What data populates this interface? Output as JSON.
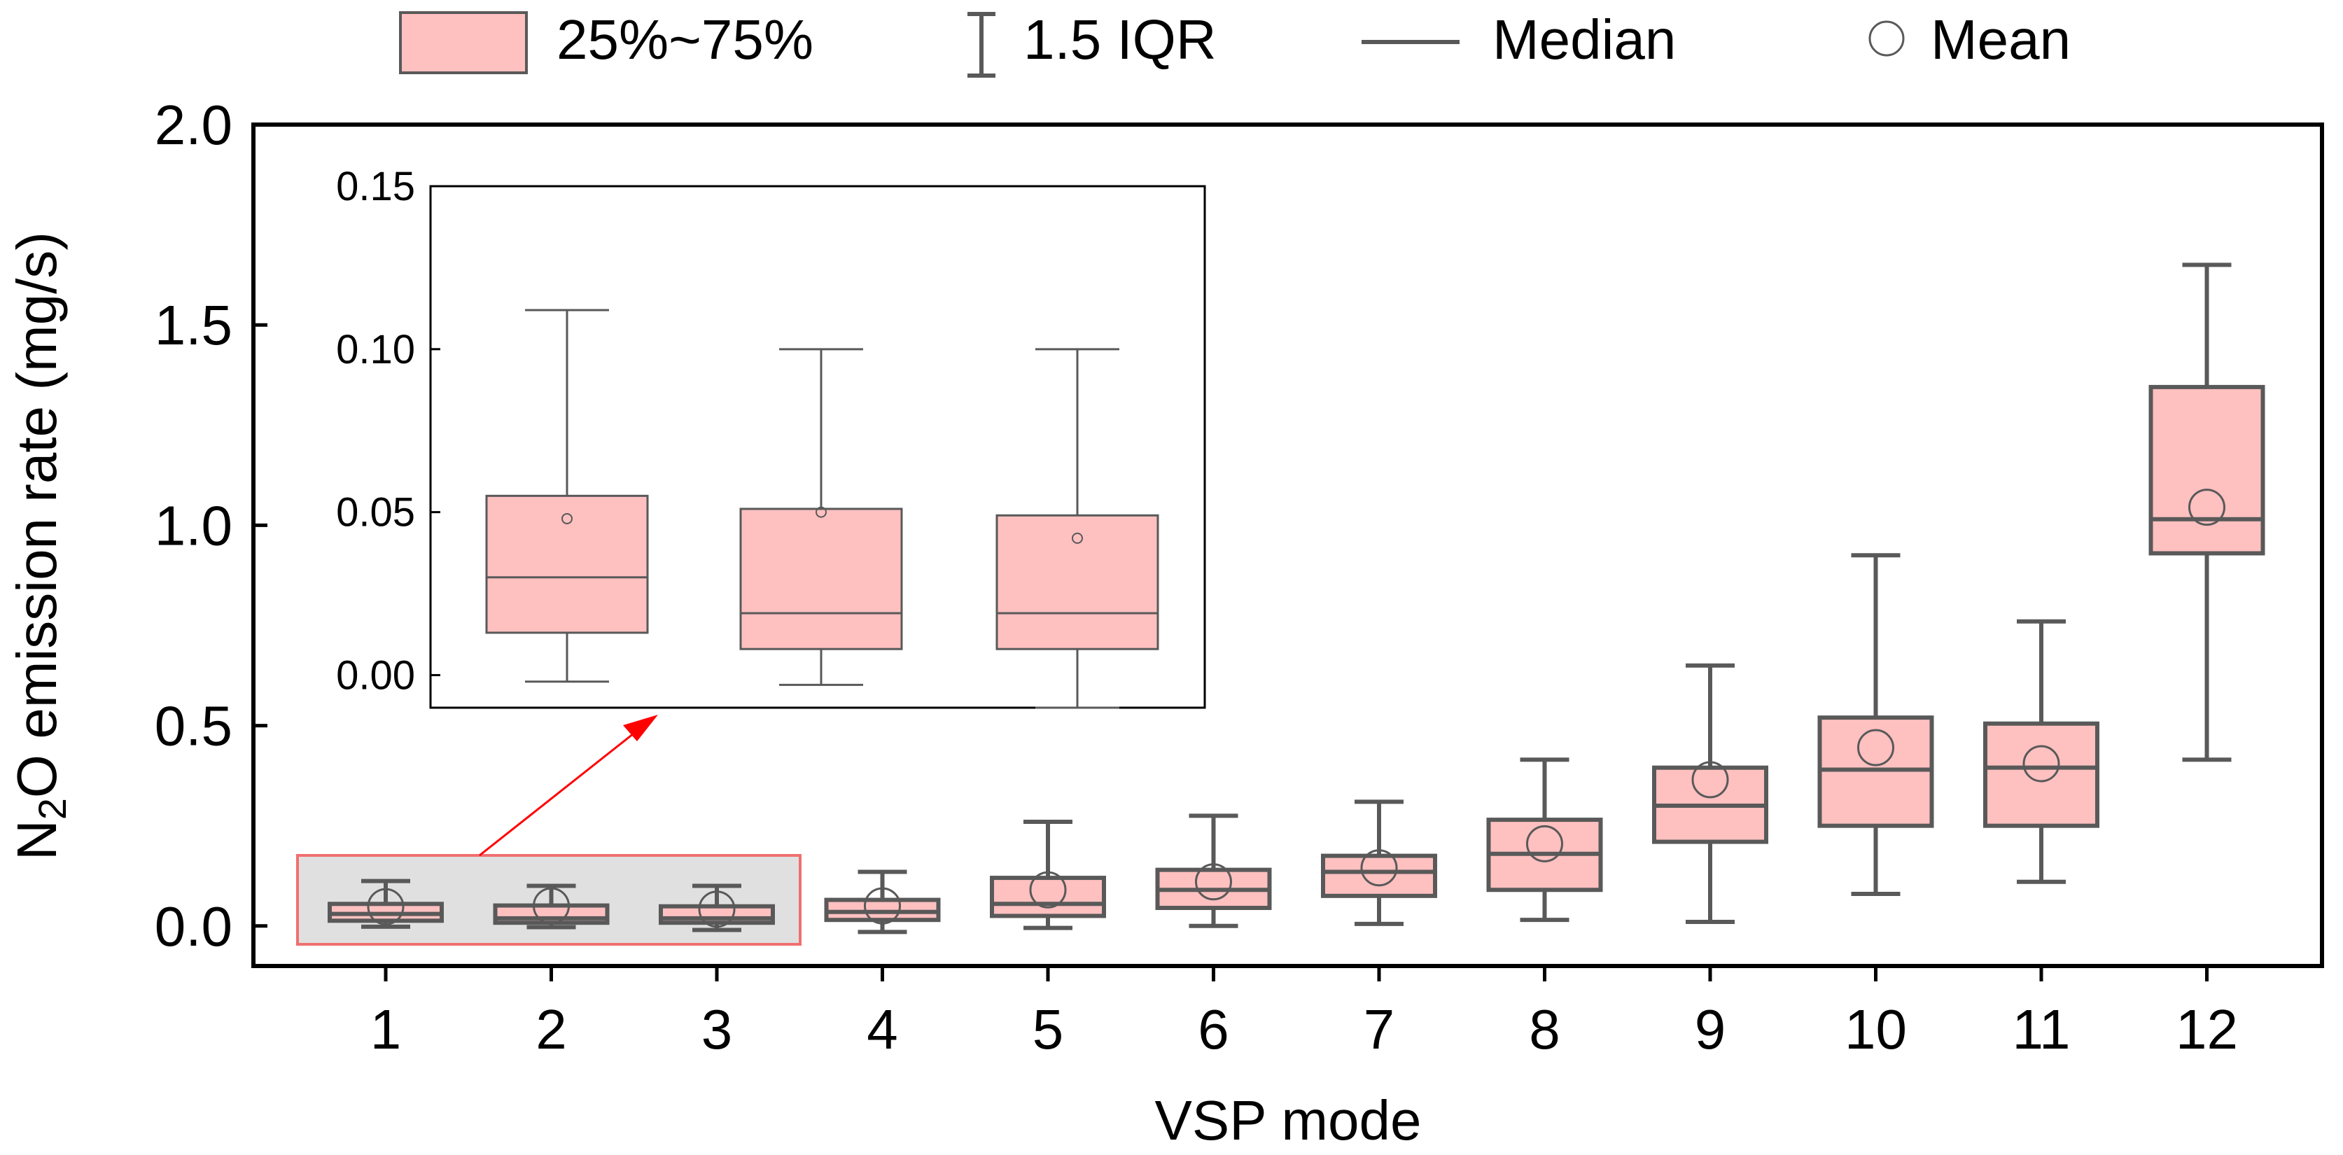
{
  "legend": {
    "box_label": "25%~75%",
    "whisker_label": "1.5 IQR",
    "median_label": "Median",
    "mean_label": "Mean"
  },
  "colors": {
    "box_fill": "#FFC0C0",
    "box_stroke": "#595959",
    "arrow": "#FF0000",
    "highlight_fill": "#E0E0E0",
    "highlight_stroke": "#F07070"
  },
  "chart_data": {
    "type": "box",
    "title": "",
    "xlabel": "VSP mode",
    "ylabel_pre": "N",
    "ylabel_sub": "2",
    "ylabel_post": "O emission rate (mg/s)",
    "ylim": [
      -0.1,
      2.0
    ],
    "yticks": [
      "0.0",
      "0.5",
      "1.0",
      "1.5",
      "2.0"
    ],
    "categories": [
      "1",
      "2",
      "3",
      "4",
      "5",
      "6",
      "7",
      "8",
      "9",
      "10",
      "11",
      "12"
    ],
    "series": [
      {
        "category": "1",
        "whisker_low": -0.002,
        "q1": 0.013,
        "median": 0.03,
        "q3": 0.055,
        "whisker_high": 0.112,
        "mean": 0.048
      },
      {
        "category": "2",
        "whisker_low": -0.003,
        "q1": 0.008,
        "median": 0.019,
        "q3": 0.051,
        "whisker_high": 0.1,
        "mean": 0.05
      },
      {
        "category": "3",
        "whisker_low": -0.01,
        "q1": 0.008,
        "median": 0.019,
        "q3": 0.049,
        "whisker_high": 0.1,
        "mean": 0.042
      },
      {
        "category": "4",
        "whisker_low": -0.015,
        "q1": 0.015,
        "median": 0.035,
        "q3": 0.065,
        "whisker_high": 0.135,
        "mean": 0.05
      },
      {
        "category": "5",
        "whisker_low": -0.005,
        "q1": 0.025,
        "median": 0.055,
        "q3": 0.12,
        "whisker_high": 0.26,
        "mean": 0.09
      },
      {
        "category": "6",
        "whisker_low": 0.0,
        "q1": 0.045,
        "median": 0.09,
        "q3": 0.14,
        "whisker_high": 0.275,
        "mean": 0.11
      },
      {
        "category": "7",
        "whisker_low": 0.005,
        "q1": 0.075,
        "median": 0.135,
        "q3": 0.175,
        "whisker_high": 0.31,
        "mean": 0.145
      },
      {
        "category": "8",
        "whisker_low": 0.015,
        "q1": 0.09,
        "median": 0.18,
        "q3": 0.265,
        "whisker_high": 0.415,
        "mean": 0.205
      },
      {
        "category": "9",
        "whisker_low": 0.01,
        "q1": 0.21,
        "median": 0.3,
        "q3": 0.395,
        "whisker_high": 0.65,
        "mean": 0.365
      },
      {
        "category": "10",
        "whisker_low": 0.08,
        "q1": 0.25,
        "median": 0.39,
        "q3": 0.52,
        "whisker_high": 0.925,
        "mean": 0.445
      },
      {
        "category": "11",
        "whisker_low": 0.11,
        "q1": 0.25,
        "median": 0.395,
        "q3": 0.505,
        "whisker_high": 0.76,
        "mean": 0.405
      },
      {
        "category": "12",
        "whisker_low": 0.415,
        "q1": 0.93,
        "median": 1.015,
        "q3": 1.345,
        "whisker_high": 1.65,
        "mean": 1.045
      }
    ],
    "inset": {
      "categories": [
        "1",
        "2",
        "3"
      ],
      "ylim": [
        -0.01,
        0.15
      ],
      "yticks": [
        "0.00",
        "0.05",
        "0.10",
        "0.15"
      ]
    }
  }
}
